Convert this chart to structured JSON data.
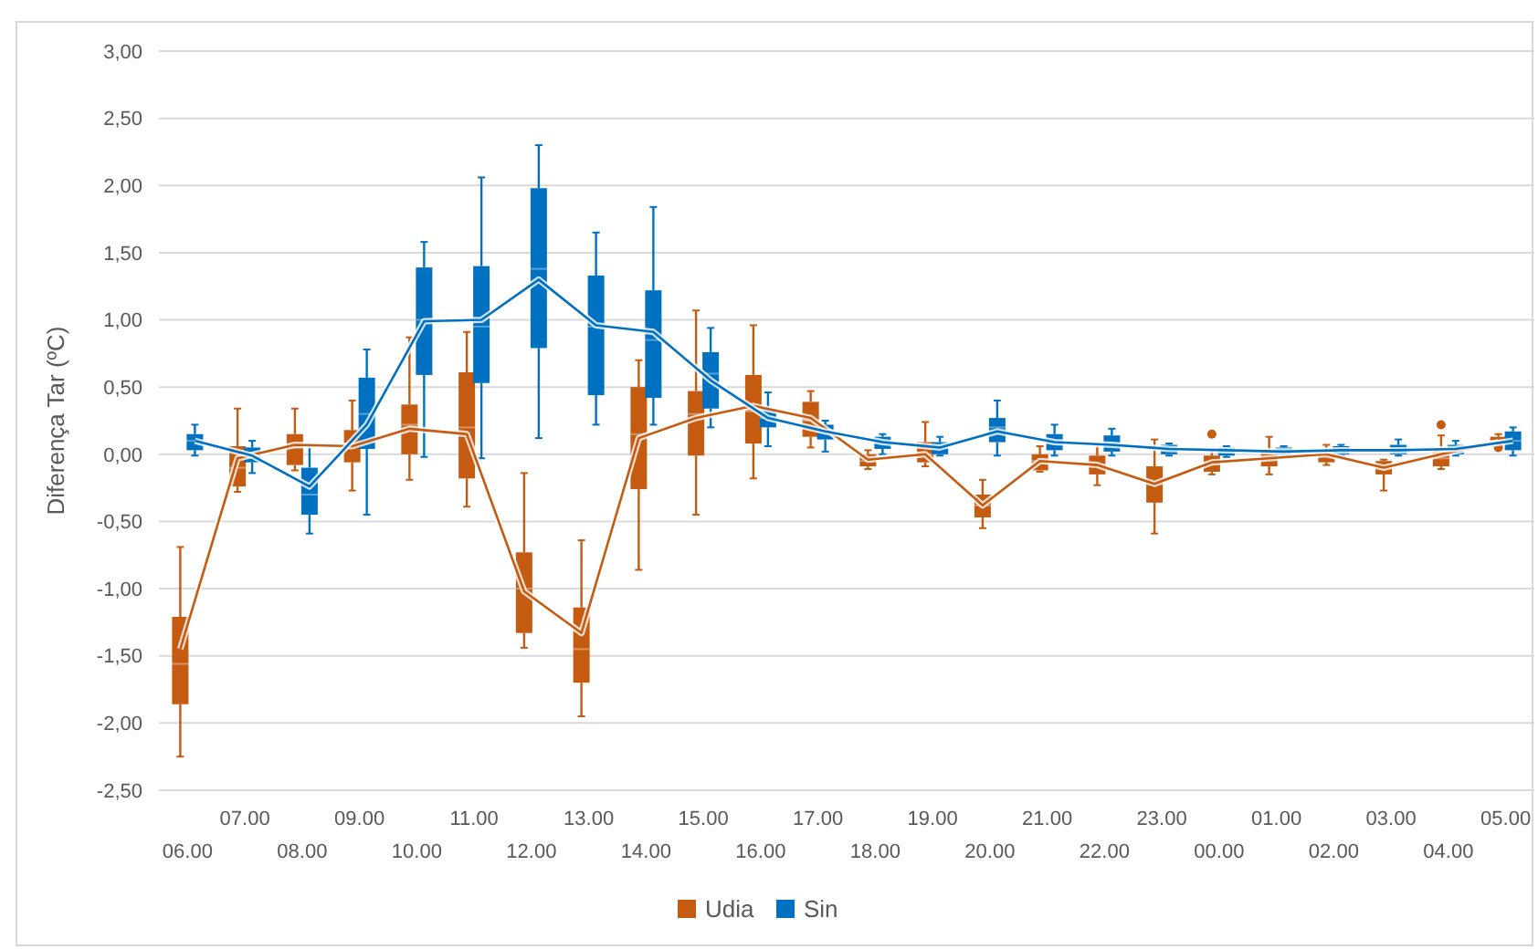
{
  "chart_data": {
    "type": "box",
    "ylabel": "Diferença Tar (ºC)",
    "categories": [
      "06.00",
      "07.00",
      "08.00",
      "09.00",
      "10.00",
      "11.00",
      "12.00",
      "13.00",
      "14.00",
      "15.00",
      "16.00",
      "17.00",
      "18.00",
      "19.00",
      "20.00",
      "21.00",
      "22.00",
      "23.00",
      "00.00",
      "01.00",
      "02.00",
      "03.00",
      "04.00",
      "05.00"
    ],
    "ylim": [
      -2.5,
      3
    ],
    "yticks": [
      {
        "value": -2.5,
        "label": "-2,50"
      },
      {
        "value": -2,
        "label": "-2,00"
      },
      {
        "value": -1.5,
        "label": "-1,50"
      },
      {
        "value": -1,
        "label": "-1,00"
      },
      {
        "value": -0.5,
        "label": "-0,50"
      },
      {
        "value": 0,
        "label": "0,00"
      },
      {
        "value": 0.5,
        "label": "0,50"
      },
      {
        "value": 1,
        "label": "1,00"
      },
      {
        "value": 1.5,
        "label": "1,50"
      },
      {
        "value": 2,
        "label": "2,00"
      },
      {
        "value": 2.5,
        "label": "2,50"
      },
      {
        "value": 3,
        "label": "3,00"
      }
    ],
    "grid": "y",
    "legend": "bottom",
    "series": [
      {
        "name": "Udia",
        "color": "#c55a11",
        "boxes": [
          {
            "low": -2.25,
            "q1": -1.86,
            "median": -1.56,
            "q3": -1.21,
            "high": -0.69
          },
          {
            "low": -0.28,
            "q1": -0.24,
            "median": -0.1,
            "q3": 0.06,
            "high": 0.34
          },
          {
            "low": -0.12,
            "q1": -0.08,
            "median": 0.05,
            "q3": 0.15,
            "high": 0.34
          },
          {
            "low": -0.27,
            "q1": -0.06,
            "median": 0.07,
            "q3": 0.18,
            "high": 0.4
          },
          {
            "low": -0.19,
            "q1": 0,
            "median": 0.22,
            "q3": 0.37,
            "high": 0.87
          },
          {
            "low": -0.39,
            "q1": -0.18,
            "median": 0.2,
            "q3": 0.61,
            "high": 0.91
          },
          {
            "low": -1.44,
            "q1": -1.33,
            "median": -1,
            "q3": -0.73,
            "high": -0.14
          },
          {
            "low": -1.95,
            "q1": -1.7,
            "median": -1.45,
            "q3": -1.14,
            "high": -0.64
          },
          {
            "low": -0.86,
            "q1": -0.26,
            "median": 0.15,
            "q3": 0.5,
            "high": 0.7
          },
          {
            "low": -0.45,
            "q1": -0.01,
            "median": 0.3,
            "q3": 0.47,
            "high": 1.07
          },
          {
            "low": -0.18,
            "q1": 0.08,
            "median": 0.32,
            "q3": 0.59,
            "high": 0.96
          },
          {
            "low": 0.05,
            "q1": 0.13,
            "median": 0.25,
            "q3": 0.39,
            "high": 0.47
          },
          {
            "low": -0.11,
            "q1": -0.09,
            "median": -0.05,
            "q3": 0,
            "high": 0.03
          },
          {
            "low": -0.09,
            "q1": -0.06,
            "median": 0,
            "q3": 0.09,
            "high": 0.24
          },
          {
            "low": -0.55,
            "q1": -0.47,
            "median": -0.38,
            "q3": -0.3,
            "high": -0.19
          },
          {
            "low": -0.13,
            "q1": -0.12,
            "median": -0.05,
            "q3": 0,
            "high": 0.06
          },
          {
            "low": -0.23,
            "q1": -0.15,
            "median": -0.08,
            "q3": -0.01,
            "high": 0.07
          },
          {
            "low": -0.59,
            "q1": -0.36,
            "median": -0.22,
            "q3": -0.09,
            "high": 0.11
          },
          {
            "low": -0.15,
            "q1": -0.13,
            "median": -0.06,
            "q3": -0.01,
            "high": 0.03,
            "outliers": [
              0.15
            ]
          },
          {
            "low": -0.15,
            "q1": -0.09,
            "median": -0.03,
            "q3": 0.02,
            "high": 0.13
          },
          {
            "low": -0.08,
            "q1": -0.06,
            "median": 0,
            "q3": 0.03,
            "high": 0.07
          },
          {
            "low": -0.27,
            "q1": -0.15,
            "median": -0.1,
            "q3": -0.05,
            "high": -0.04
          },
          {
            "low": -0.11,
            "q1": -0.09,
            "median": -0.03,
            "q3": 0.03,
            "high": 0.14,
            "outliers": [
              0.22
            ]
          },
          {
            "low": 0.07,
            "q1": 0.08,
            "median": 0.1,
            "q3": 0.13,
            "high": 0.15,
            "outliers": [
              0.05
            ]
          }
        ]
      },
      {
        "name": "Sin",
        "color": "#0070c0",
        "boxes": [
          {
            "low": -0.01,
            "q1": 0.03,
            "median": 0.1,
            "q3": 0.15,
            "high": 0.22
          },
          {
            "low": -0.14,
            "q1": -0.06,
            "median": 0,
            "q3": 0.05,
            "high": 0.1
          },
          {
            "low": -0.59,
            "q1": -0.45,
            "median": -0.3,
            "q3": -0.1,
            "high": 0.07
          },
          {
            "low": -0.45,
            "q1": 0.04,
            "median": 0.3,
            "q3": 0.57,
            "high": 0.78
          },
          {
            "low": -0.02,
            "q1": 0.59,
            "median": 1,
            "q3": 1.39,
            "high": 1.58
          },
          {
            "low": -0.03,
            "q1": 0.53,
            "median": 0.95,
            "q3": 1.4,
            "high": 2.06
          },
          {
            "low": 0.12,
            "q1": 0.79,
            "median": 1.38,
            "q3": 1.98,
            "high": 2.3
          },
          {
            "low": 0.22,
            "q1": 0.44,
            "median": 0.95,
            "q3": 1.33,
            "high": 1.65
          },
          {
            "low": 0.22,
            "q1": 0.42,
            "median": 0.85,
            "q3": 1.22,
            "high": 1.84
          },
          {
            "low": 0.2,
            "q1": 0.34,
            "median": 0.6,
            "q3": 0.76,
            "high": 0.94
          },
          {
            "low": 0.06,
            "q1": 0.2,
            "median": 0.27,
            "q3": 0.34,
            "high": 0.46
          },
          {
            "low": 0.02,
            "q1": 0.11,
            "median": 0.17,
            "q3": 0.22,
            "high": 0.25
          },
          {
            "low": 0,
            "q1": 0.04,
            "median": 0.09,
            "q3": 0.13,
            "high": 0.15
          },
          {
            "low": -0.01,
            "q1": 0,
            "median": 0.05,
            "q3": 0.09,
            "high": 0.13
          },
          {
            "low": -0.01,
            "q1": 0.09,
            "median": 0.2,
            "q3": 0.27,
            "high": 0.4
          },
          {
            "low": -0.01,
            "q1": 0.03,
            "median": 0.1,
            "q3": 0.15,
            "high": 0.22
          },
          {
            "low": -0.01,
            "q1": 0.02,
            "median": 0.08,
            "q3": 0.14,
            "high": 0.19
          },
          {
            "low": -0.01,
            "q1": 0,
            "median": 0.04,
            "q3": 0.07,
            "high": 0.08
          },
          {
            "low": -0.02,
            "q1": -0.01,
            "median": 0.03,
            "q3": 0.05,
            "high": 0.06
          },
          {
            "low": -0.02,
            "q1": -0.01,
            "median": 0.02,
            "q3": 0.05,
            "high": 0.06
          },
          {
            "low": -0.01,
            "q1": 0,
            "median": 0.03,
            "q3": 0.06,
            "high": 0.07
          },
          {
            "low": -0.01,
            "q1": 0,
            "median": 0.03,
            "q3": 0.07,
            "high": 0.11
          },
          {
            "low": -0.01,
            "q1": 0,
            "median": 0.04,
            "q3": 0.07,
            "high": 0.1
          },
          {
            "low": -0.01,
            "q1": 0.03,
            "median": 0.1,
            "q3": 0.17,
            "high": 0.2
          }
        ]
      },
      {
        "type": "line",
        "color": "#c55a11",
        "values": [
          -1.45,
          -0.03,
          0.07,
          0.06,
          0.19,
          0.15,
          -1.02,
          -1.33,
          0.12,
          0.27,
          0.36,
          0.27,
          -0.04,
          0,
          -0.38,
          -0.05,
          -0.08,
          -0.22,
          -0.06,
          -0.03,
          0,
          -0.1,
          0,
          0.09
        ]
      },
      {
        "type": "line",
        "color": "#0070c0",
        "values": [
          0.1,
          -0.01,
          -0.24,
          0.22,
          0.99,
          1,
          1.3,
          0.96,
          0.91,
          0.55,
          0.27,
          0.17,
          0.09,
          0.05,
          0.17,
          0.09,
          0.07,
          0.04,
          0.03,
          0.02,
          0.03,
          0.03,
          0.04,
          0.1
        ]
      }
    ]
  }
}
